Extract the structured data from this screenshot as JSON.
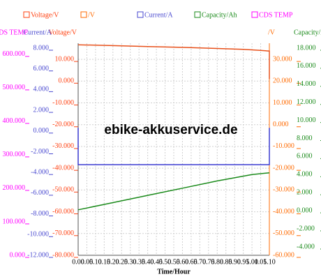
{
  "chart_data": {
    "type": "line",
    "watermark": "ebike-akkuservice.de",
    "xlabel": "Time/Hour",
    "xlim": [
      0,
      1.1
    ],
    "xticks": [
      {
        "value": 0,
        "label": "0.00"
      },
      {
        "value": 0.05,
        "label": "0.05"
      },
      {
        "value": 0.1,
        "label": "0.10"
      },
      {
        "value": 0.15,
        "label": "0.15"
      },
      {
        "value": 0.2,
        "label": "0.20"
      },
      {
        "value": 0.25,
        "label": "0.25"
      },
      {
        "value": 0.3,
        "label": "0.30"
      },
      {
        "value": 0.35,
        "label": "0.35"
      },
      {
        "value": 0.4,
        "label": "0.40"
      },
      {
        "value": 0.45,
        "label": "0.45"
      },
      {
        "value": 0.5,
        "label": "0.50"
      },
      {
        "value": 0.55,
        "label": "0.55"
      },
      {
        "value": 0.6,
        "label": "0.60"
      },
      {
        "value": 0.65,
        "label": "0.65"
      },
      {
        "value": 0.7,
        "label": "0.70"
      },
      {
        "value": 0.75,
        "label": "0.75"
      },
      {
        "value": 0.8,
        "label": "0.80"
      },
      {
        "value": 0.85,
        "label": "0.85"
      },
      {
        "value": 0.9,
        "label": "0.90"
      },
      {
        "value": 0.95,
        "label": "0.95"
      },
      {
        "value": 1.0,
        "label": "1.00"
      },
      {
        "value": 1.05,
        "label": "1.05"
      },
      {
        "value": 1.1,
        "label": "1.10"
      }
    ],
    "grid": true,
    "axes": [
      {
        "name": "Voltage/V",
        "color": "#ff4010",
        "lim": [
          -80,
          17.4
        ],
        "ticks": [
          {
            "value": 10,
            "label": "10.000"
          },
          {
            "value": 0,
            "label": "0.000"
          },
          {
            "value": -10,
            "label": "-10.000"
          },
          {
            "value": -20,
            "label": "-20.000"
          },
          {
            "value": -30,
            "label": "-30.000"
          },
          {
            "value": -40,
            "label": "-40.000"
          },
          {
            "value": -50,
            "label": "-50.000"
          },
          {
            "value": -60,
            "label": "-60.000"
          },
          {
            "value": -70,
            "label": "-70.000"
          },
          {
            "value": -80,
            "label": "-80.000"
          }
        ]
      },
      {
        "name": "/V",
        "color": "#ff6a00",
        "lim": [
          -60,
          37.4
        ],
        "ticks": [
          {
            "value": 30,
            "label": "30.000"
          },
          {
            "value": 20,
            "label": "20.000"
          },
          {
            "value": 10,
            "label": "10.000"
          },
          {
            "value": 0,
            "label": "0.000"
          },
          {
            "value": -10,
            "label": "-10.000"
          },
          {
            "value": -20,
            "label": "-20.000"
          },
          {
            "value": -30,
            "label": "-30.000"
          },
          {
            "value": -40,
            "label": "-40.000"
          },
          {
            "value": -50,
            "label": "-50.000"
          },
          {
            "value": -60,
            "label": "-60.000"
          }
        ]
      },
      {
        "name": "Current/A",
        "color": "#4a4ad0",
        "lim": [
          -12,
          8.47
        ],
        "ticks": [
          {
            "value": 8,
            "label": "8.000"
          },
          {
            "value": 6,
            "label": "6.000"
          },
          {
            "value": 4,
            "label": "4.000"
          },
          {
            "value": 2,
            "label": "2.000"
          },
          {
            "value": 0,
            "label": "0.000"
          },
          {
            "value": -2,
            "label": "-2.000"
          },
          {
            "value": -4,
            "label": "-4.000"
          },
          {
            "value": -6,
            "label": "-6.000"
          },
          {
            "value": -8,
            "label": "-8.000"
          },
          {
            "value": -10,
            "label": "-10.000"
          },
          {
            "value": -12,
            "label": "-12.000"
          }
        ]
      },
      {
        "name": "Capacity/Ah",
        "color": "#1a8a1a",
        "lim": [
          -4.93,
          18.54
        ],
        "ticks": [
          {
            "value": 18,
            "label": "18.000"
          },
          {
            "value": 16,
            "label": "16.000"
          },
          {
            "value": 14,
            "label": "14.000"
          },
          {
            "value": 12,
            "label": "12.000"
          },
          {
            "value": 10,
            "label": "10.000"
          },
          {
            "value": 8,
            "label": "8.000"
          },
          {
            "value": 6,
            "label": "6.000"
          },
          {
            "value": 4,
            "label": "4.000"
          },
          {
            "value": 2,
            "label": "2.000"
          },
          {
            "value": 0,
            "label": "0.000"
          },
          {
            "value": -2,
            "label": "-2.000"
          },
          {
            "value": -4,
            "label": "-4.000"
          }
        ]
      },
      {
        "name": "CDS TEMP",
        "color": "#ff00ff",
        "lim": [
          0,
          633
        ],
        "ticks": [
          {
            "value": 600,
            "label": "600.000"
          },
          {
            "value": 500,
            "label": "500.000"
          },
          {
            "value": 400,
            "label": "400.000"
          },
          {
            "value": 300,
            "label": "300.000"
          },
          {
            "value": 200,
            "label": "200.000"
          },
          {
            "value": 100,
            "label": "100.000"
          },
          {
            "value": 0,
            "label": "0.000"
          }
        ]
      }
    ],
    "series": [
      {
        "axis": 1,
        "color": "#e8501a",
        "x": [
          0,
          0.2,
          0.4,
          0.6,
          0.8,
          0.95,
          1.05,
          1.1,
          1.1
        ],
        "values": [
          36.7,
          36.3,
          35.9,
          35.5,
          35.0,
          34.6,
          34.1,
          33.8,
          21
        ]
      },
      {
        "axis": 2,
        "color": "#3a3ad0",
        "x": [
          0,
          0,
          1.1,
          1.1
        ],
        "values": [
          0.3,
          -3.25,
          -3.25,
          0.3
        ]
      },
      {
        "axis": 3,
        "color": "#1a8a1a",
        "x": [
          0,
          0.2,
          0.4,
          0.6,
          0.8,
          1.0,
          1.1
        ],
        "values": [
          0.1,
          0.9,
          1.7,
          2.5,
          3.3,
          4.0,
          4.2
        ]
      }
    ]
  }
}
